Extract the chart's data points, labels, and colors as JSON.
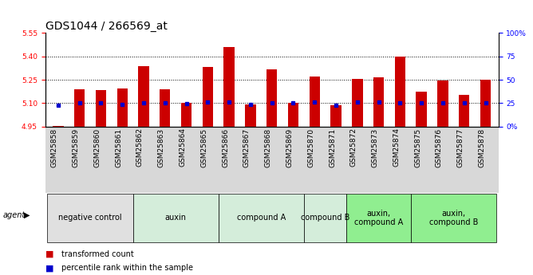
{
  "title": "GDS1044 / 266569_at",
  "samples": [
    "GSM25858",
    "GSM25859",
    "GSM25860",
    "GSM25861",
    "GSM25862",
    "GSM25863",
    "GSM25864",
    "GSM25865",
    "GSM25866",
    "GSM25867",
    "GSM25868",
    "GSM25869",
    "GSM25870",
    "GSM25871",
    "GSM25872",
    "GSM25873",
    "GSM25874",
    "GSM25875",
    "GSM25876",
    "GSM25877",
    "GSM25878"
  ],
  "bar_values": [
    4.955,
    5.19,
    5.185,
    5.195,
    5.335,
    5.19,
    5.1,
    5.33,
    5.46,
    5.09,
    5.315,
    5.1,
    5.27,
    5.085,
    5.255,
    5.265,
    5.4,
    5.175,
    5.245,
    5.155,
    5.25
  ],
  "percentile_values": [
    5.085,
    5.1,
    5.1,
    5.09,
    5.1,
    5.1,
    5.095,
    5.105,
    5.105,
    5.09,
    5.1,
    5.1,
    5.105,
    5.085,
    5.105,
    5.105,
    5.1,
    5.1,
    5.1,
    5.1,
    5.1
  ],
  "bar_base": 4.95,
  "ylim_left": [
    4.95,
    5.55
  ],
  "ylim_right": [
    0,
    100
  ],
  "yticks_left": [
    4.95,
    5.1,
    5.25,
    5.4,
    5.55
  ],
  "yticks_right": [
    0,
    25,
    50,
    75,
    100
  ],
  "ytick_labels_right": [
    "0%",
    "25",
    "50",
    "75",
    "100%"
  ],
  "grid_lines": [
    5.1,
    5.25,
    5.4
  ],
  "groups": [
    {
      "label": "negative control",
      "start": 0,
      "end": 4,
      "color": "#e0e0e0"
    },
    {
      "label": "auxin",
      "start": 4,
      "end": 8,
      "color": "#d4edda"
    },
    {
      "label": "compound A",
      "start": 8,
      "end": 12,
      "color": "#d4edda"
    },
    {
      "label": "compound B",
      "start": 12,
      "end": 14,
      "color": "#d4edda"
    },
    {
      "label": "auxin,\ncompound A",
      "start": 14,
      "end": 17,
      "color": "#90EE90"
    },
    {
      "label": "auxin,\ncompound B",
      "start": 17,
      "end": 21,
      "color": "#90EE90"
    }
  ],
  "bar_color": "#cc0000",
  "marker_color": "#0000cc",
  "bar_width": 0.5,
  "legend_labels": [
    "transformed count",
    "percentile rank within the sample"
  ],
  "legend_colors": [
    "#cc0000",
    "#0000cc"
  ],
  "title_fontsize": 10,
  "tick_fontsize": 6.5,
  "group_fontsize": 7,
  "legend_fontsize": 7
}
